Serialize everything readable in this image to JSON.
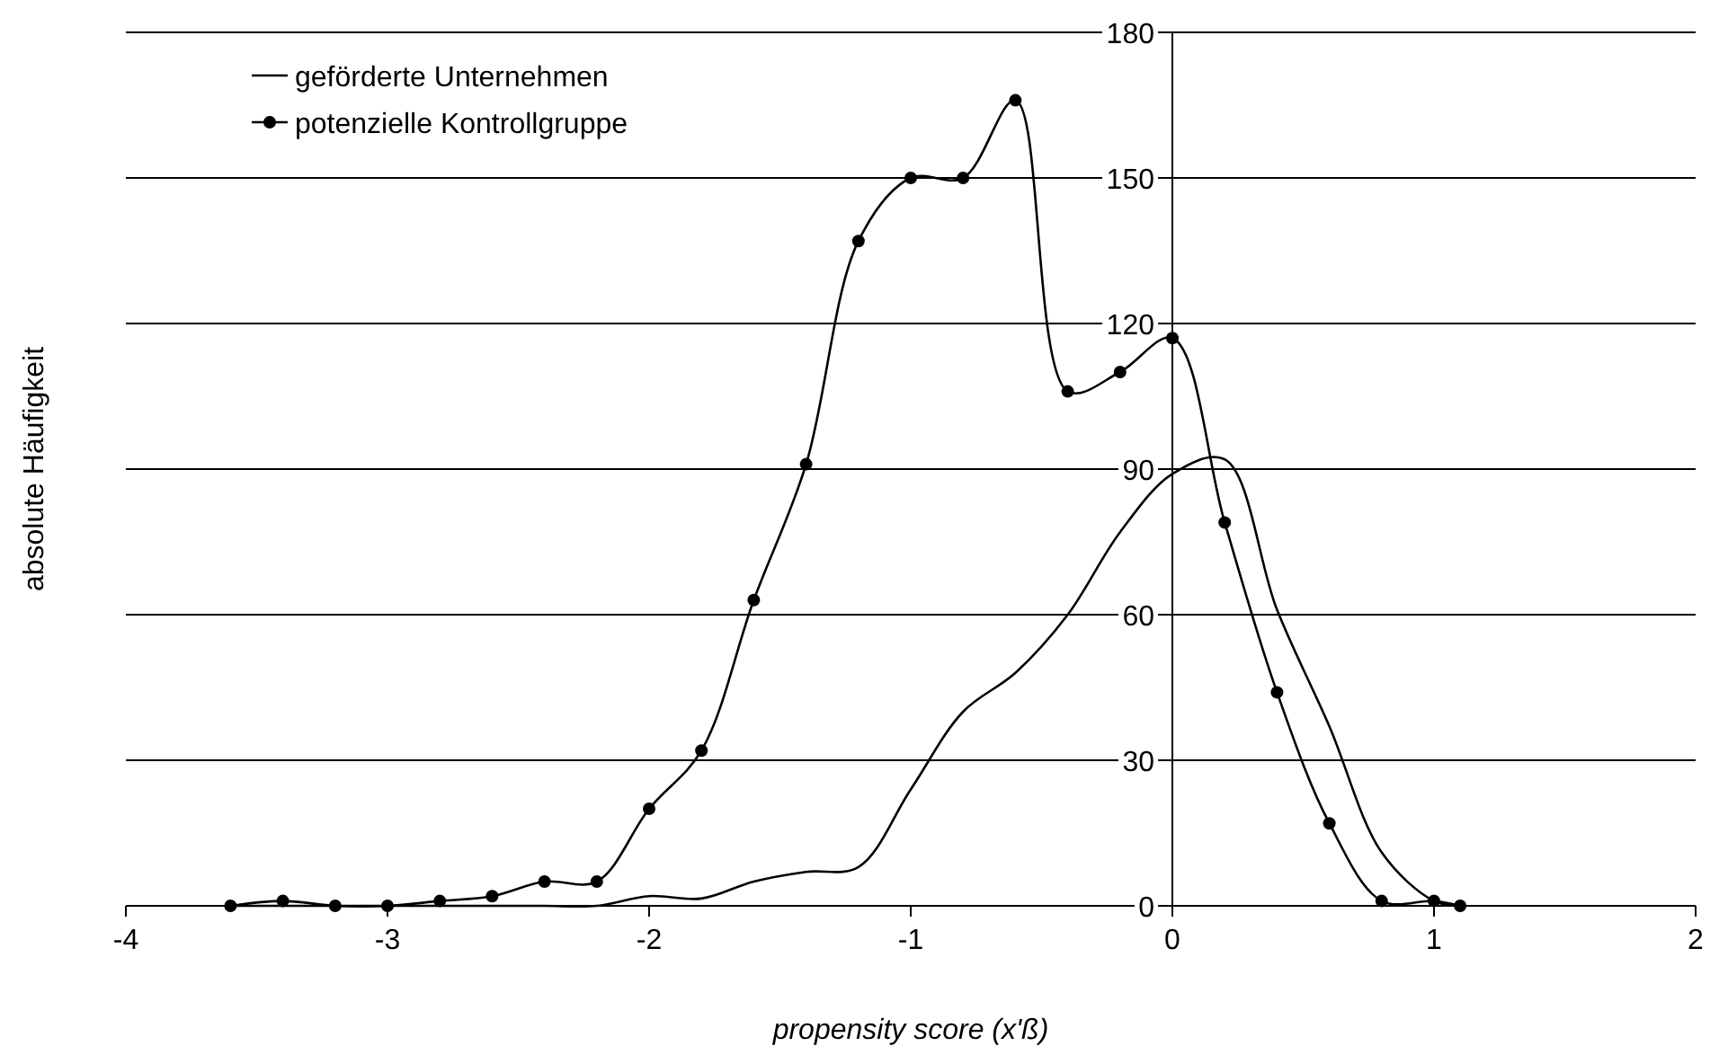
{
  "chart_data": {
    "type": "line",
    "xlabel": "propensity score (x'ß)",
    "ylabel": "absolute Häufigkeit",
    "x": [
      -3.6,
      -3.4,
      -3.2,
      -3.0,
      -2.8,
      -2.6,
      -2.4,
      -2.2,
      -2.0,
      -1.8,
      -1.6,
      -1.4,
      -1.2,
      -1.0,
      -0.8,
      -0.6,
      -0.4,
      -0.2,
      0,
      0.2,
      0.4,
      0.6,
      0.8,
      1.0,
      1.1
    ],
    "series": [
      {
        "name": "geförderte Unternehmen",
        "color": "#000000",
        "marker": "none",
        "values": [
          0,
          0,
          0,
          0,
          0,
          0,
          0,
          0,
          2,
          1.5,
          5,
          7,
          8,
          24,
          40,
          48,
          60,
          77,
          89,
          92,
          61,
          37,
          11,
          1,
          0
        ]
      },
      {
        "name": "potenzielle Kontrollgruppe",
        "color": "#000000",
        "marker": "circle",
        "values": [
          0,
          1,
          0,
          0,
          1,
          2,
          5,
          5,
          20,
          32,
          63,
          91,
          137,
          150,
          150,
          166,
          106,
          110,
          117,
          79,
          44,
          17,
          1,
          1,
          0
        ]
      }
    ],
    "xlim": [
      -4,
      2
    ],
    "xticks": [
      -4,
      -3,
      -2,
      -1,
      0,
      1,
      2
    ],
    "ylim": [
      0,
      180
    ],
    "yticks": [
      0,
      30,
      60,
      90,
      120,
      150,
      180
    ],
    "grid": "y",
    "legend": "top left",
    "line_style": "solid"
  }
}
